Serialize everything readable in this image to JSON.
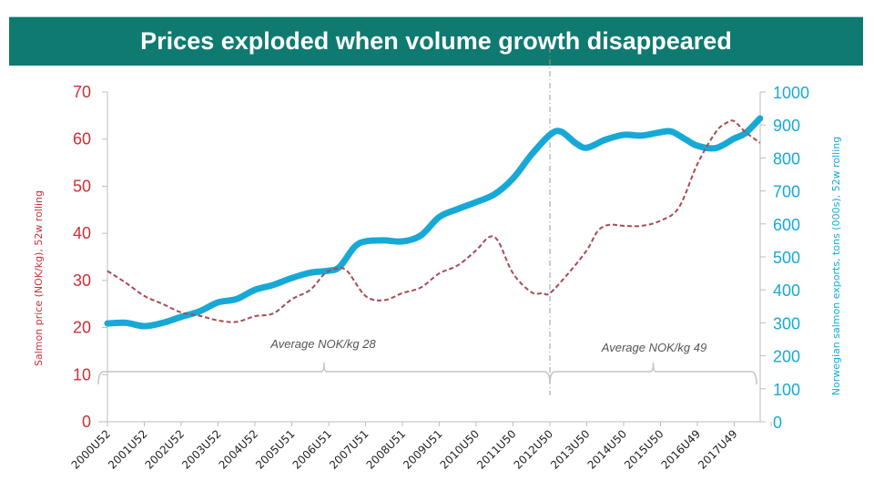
{
  "chart_data": {
    "type": "line",
    "title": "Prices exploded when volume growth disappeared",
    "xlabel": "",
    "x": [
      "2000U52",
      "2001U52",
      "2002U52",
      "2003U52",
      "2004U52",
      "2005U51",
      "2006U51",
      "2007U51",
      "2008U51",
      "2009U51",
      "2010U50",
      "2011U50",
      "2012U50",
      "2013U50",
      "2014U50",
      "2015U50",
      "2016U49",
      "2017U49"
    ],
    "x_tick_labels": [
      "2000U52",
      "2001U52",
      "2002U52",
      "2003U52",
      "2004U52",
      "2005U51",
      "2006U51",
      "2007U51",
      "2008U51",
      "2009U51",
      "2010U50",
      "2011U50",
      "2012U50",
      "2013U50",
      "2014U50",
      "2015U50",
      "2016U49",
      "2017U49"
    ],
    "y_left": {
      "label": "Salmon price (NOK/kg), 52w rolling",
      "ylim": [
        0,
        70
      ],
      "ticks": [
        "0",
        "10",
        "20",
        "30",
        "40",
        "50",
        "60",
        "70"
      ],
      "color": "#c8313a"
    },
    "y_right": {
      "label": "Norwegian salmon exports, tons (000s), 52w rolling",
      "ylim": [
        0,
        1000
      ],
      "ticks": [
        "0",
        "100",
        "200",
        "300",
        "400",
        "500",
        "600",
        "700",
        "800",
        "900",
        "1000"
      ],
      "color": "#17a9d6"
    },
    "series": [
      {
        "name": "Salmon price (NOK/kg), 52w rolling",
        "axis": "left",
        "style": "dashed",
        "color": "#a84a52",
        "x_index": [
          0,
          0.5,
          1,
          1.5,
          2,
          2.5,
          3,
          3.5,
          4,
          4.5,
          5,
          5.5,
          5.9,
          6.2,
          6.5,
          7,
          7.5,
          8,
          8.5,
          9,
          9.5,
          10,
          10.35,
          10.6,
          11,
          11.5,
          11.8,
          12,
          12.5,
          13,
          13.3,
          13.6,
          14,
          14.5,
          15,
          15.5,
          16,
          16.5,
          16.8,
          17,
          17.3,
          17.7
        ],
        "values": [
          32,
          29.5,
          26.7,
          25,
          23.2,
          22.5,
          21.5,
          21.2,
          22.4,
          23,
          26,
          28,
          31.5,
          32.5,
          32,
          26.7,
          25.8,
          27.3,
          28.5,
          31.5,
          33.2,
          36.4,
          39.2,
          38.3,
          31.5,
          27.5,
          27.3,
          27.3,
          31.5,
          36.4,
          40.5,
          41.8,
          41.6,
          41.6,
          42.7,
          45.5,
          54.7,
          61.5,
          63.5,
          63.8,
          61.5,
          59.2
        ]
      },
      {
        "name": "Norwegian salmon exports, tons (000s), 52w rolling",
        "axis": "right",
        "style": "solid",
        "color": "#17a9d6",
        "x_index": [
          0,
          0.5,
          1,
          1.5,
          2,
          2.5,
          3,
          3.5,
          4,
          4.5,
          5,
          5.5,
          6,
          6.3,
          6.7,
          7,
          7.5,
          8,
          8.5,
          9,
          9.5,
          10,
          10.5,
          11,
          11.5,
          12,
          12.3,
          12.7,
          13,
          13.5,
          14,
          14.5,
          15,
          15.3,
          15.7,
          16,
          16.5,
          17,
          17.3,
          17.7
        ],
        "values": [
          298,
          300,
          290,
          300,
          318,
          335,
          362,
          372,
          400,
          415,
          436,
          452,
          458,
          470,
          530,
          547,
          550,
          547,
          565,
          621,
          645,
          666,
          690,
          738,
          810,
          870,
          880,
          845,
          831,
          855,
          870,
          868,
          878,
          880,
          855,
          837,
          830,
          859,
          875,
          920
        ]
      }
    ],
    "annotations": [
      {
        "text": "Average NOK/kg 28",
        "span": [
          "2000U52",
          "2012U50"
        ]
      },
      {
        "text": "Average NOK/kg 49",
        "span": [
          "2012U50",
          "end"
        ]
      }
    ],
    "divider_at": "2012U50",
    "grid": false,
    "legend": "none"
  }
}
